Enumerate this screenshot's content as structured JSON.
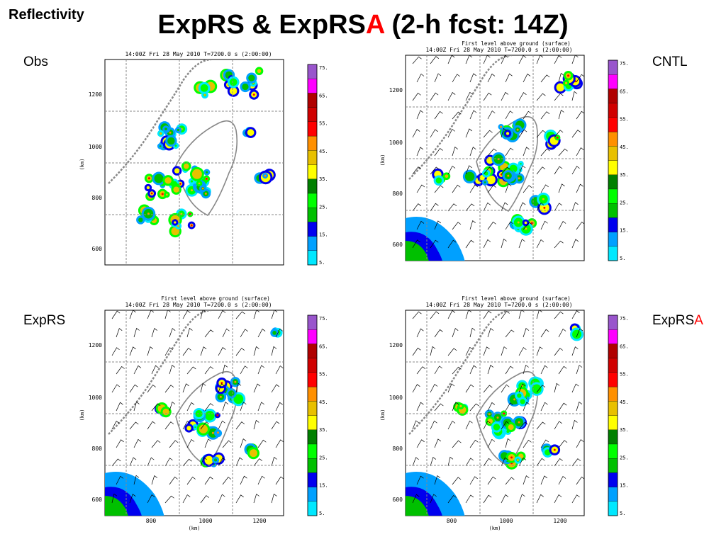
{
  "slide": {
    "corner_label": "Reflectivity",
    "title_main": "ExpRS & ExpRS",
    "title_accent": "A",
    "title_rest": " (2-h fcst: 14Z)",
    "accent_color": "#ff0000"
  },
  "panels": [
    {
      "label": "Obs",
      "label_accent": "",
      "surface_caption": "",
      "time_caption": "14:00Z Fri 28 May 2010      T=7200.0 s (2:00:00)",
      "y_ticks": [
        "1200",
        "1000",
        "800",
        "600"
      ],
      "y_unit": "(km)",
      "x_ticks": [],
      "x_unit": "",
      "wind_barbs": false
    },
    {
      "label": "CNTL",
      "label_accent": "",
      "surface_caption": "First level above ground (surface)",
      "time_caption": "14:00Z Fri 28 May 2010      T=7200.0 s (2:00:00)",
      "y_ticks": [
        "1200",
        "1000",
        "800",
        "600"
      ],
      "y_unit": "(km)",
      "x_ticks": [],
      "x_unit": "",
      "wind_barbs": true
    },
    {
      "label": "ExpRS",
      "label_accent": "",
      "surface_caption": "First level above ground (surface)",
      "time_caption": "14:00Z Fri 28 May 2010      T=7200.0 s (2:00:00)",
      "y_ticks": [
        "1200",
        "1000",
        "800",
        "600"
      ],
      "y_unit": "(km)",
      "x_ticks": [
        "800",
        "1000",
        "1200"
      ],
      "x_unit": "(km)",
      "wind_barbs": true
    },
    {
      "label": "ExpRS",
      "label_accent": "A",
      "surface_caption": "First level above ground (surface)",
      "time_caption": "14:00Z Fri 28 May 2010      T=7200.0 s (2:00:00)",
      "y_ticks": [
        "1200",
        "1000",
        "800",
        "600"
      ],
      "y_unit": "(km)",
      "x_ticks": [
        "800",
        "1000",
        "1200"
      ],
      "x_unit": "(km)",
      "wind_barbs": true
    }
  ],
  "color_scale": {
    "labels": [
      "75.",
      "65.",
      "55.",
      "45.",
      "35.",
      "25.",
      "15.",
      "5."
    ],
    "colors": [
      "#00e8ff",
      "#00a0ff",
      "#0000ee",
      "#00c000",
      "#00ff00",
      "#008000",
      "#ffff00",
      "#e8c000",
      "#ff9000",
      "#ff0000",
      "#d00000",
      "#b00000",
      "#ff00ff",
      "#9955cc"
    ]
  },
  "field_colors": [
    "#00e8ff",
    "#00a0ff",
    "#0000ee",
    "#00ff00",
    "#00c000",
    "#ffff00",
    "#e8c000",
    "#ff9000",
    "#ff0000"
  ]
}
